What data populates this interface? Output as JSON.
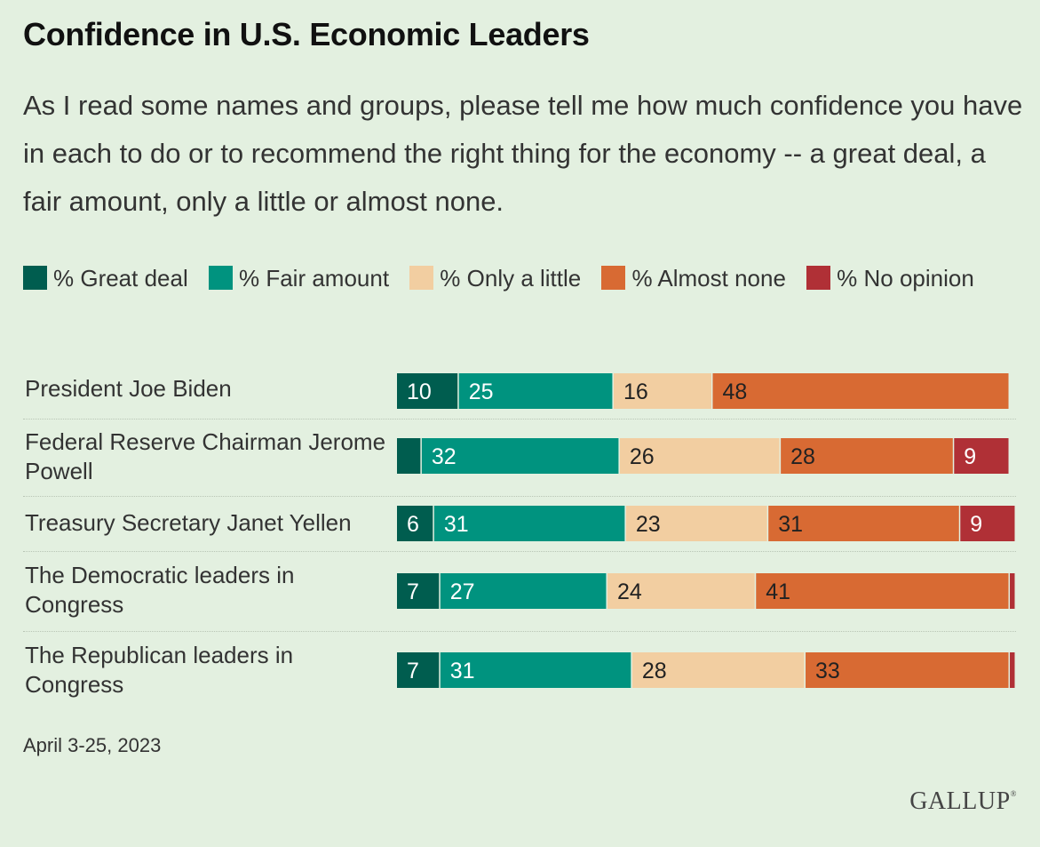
{
  "chart_data": {
    "type": "bar",
    "orientation": "horizontal",
    "stacked": true,
    "title": "Confidence in U.S. Economic Leaders",
    "subtitle": "As I read some names and groups, please tell me how much confidence you have in each to do or to recommend the right thing for the economy -- a great deal, a fair amount, only a little or almost none.",
    "categories": [
      "President Joe Biden",
      "Federal Reserve Chairman Jerome Powell",
      "Treasury Secretary Janet Yellen",
      "The Democratic leaders in Congress",
      "The Republican leaders in Congress"
    ],
    "series": [
      {
        "name": "% Great deal",
        "color": "#005d4f",
        "values": [
          10,
          4,
          6,
          7,
          7
        ]
      },
      {
        "name": "% Fair amount",
        "color": "#00937f",
        "values": [
          25,
          32,
          31,
          27,
          31
        ]
      },
      {
        "name": "% Only a little",
        "color": "#f2cea1",
        "values": [
          16,
          26,
          23,
          24,
          28
        ]
      },
      {
        "name": "% Almost none",
        "color": "#d86a33",
        "values": [
          48,
          28,
          31,
          41,
          33
        ]
      },
      {
        "name": "% No opinion",
        "color": "#b03036",
        "values": [
          0,
          9,
          9,
          1,
          1
        ]
      }
    ],
    "labels": [
      [
        "10",
        "25",
        "16",
        "48",
        ""
      ],
      [
        "",
        "32",
        "26",
        "28",
        "9"
      ],
      [
        "6",
        "31",
        "23",
        "31",
        "9"
      ],
      [
        "7",
        "27",
        "24",
        "41",
        ""
      ],
      [
        "7",
        "31",
        "28",
        "33",
        ""
      ]
    ],
    "label_colors": [
      "#ffffff",
      "#ffffff",
      "#222222",
      "#222222",
      "#ffffff"
    ],
    "xlim": [
      0,
      100
    ],
    "legend_position": "top"
  },
  "footnote": "April 3-25, 2023",
  "logo_text": "GALLUP"
}
